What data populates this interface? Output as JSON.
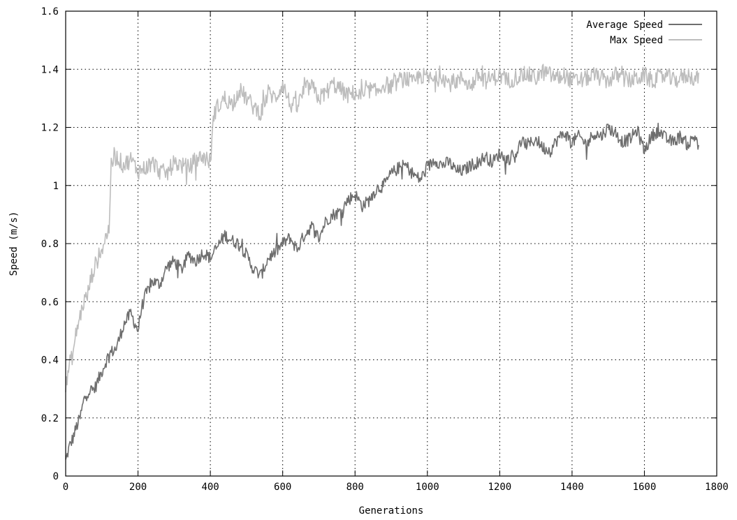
{
  "chart_data": {
    "type": "line",
    "title": "",
    "xlabel": "Generations",
    "ylabel": "Speed (m/s)",
    "xlim": [
      0,
      1800
    ],
    "ylim": [
      0,
      1.6
    ],
    "xticks": [
      0,
      200,
      400,
      600,
      800,
      1000,
      1200,
      1400,
      1600,
      1800
    ],
    "xtick_labels": [
      "0",
      "200",
      "400",
      "600",
      "800",
      "1000",
      "1200",
      "1400",
      "1600",
      "1800"
    ],
    "yticks": [
      0,
      0.2,
      0.4,
      0.6,
      0.8,
      1.0,
      1.2,
      1.4,
      1.6
    ],
    "ytick_labels": [
      "0",
      "0.2",
      "0.4",
      "0.6",
      "0.8",
      "1",
      "1.2",
      "1.4",
      "1.6"
    ],
    "grid": true,
    "legend_position": "top-right",
    "series": [
      {
        "name": "Average Speed",
        "color": "#6e6e6e",
        "noise": 0.022,
        "x": [
          0,
          10,
          20,
          30,
          40,
          50,
          60,
          80,
          100,
          120,
          140,
          160,
          180,
          200,
          210,
          220,
          240,
          260,
          280,
          300,
          320,
          340,
          360,
          380,
          400,
          420,
          440,
          460,
          480,
          500,
          520,
          540,
          560,
          580,
          600,
          620,
          640,
          660,
          680,
          700,
          720,
          740,
          760,
          780,
          800,
          820,
          840,
          860,
          880,
          900,
          920,
          940,
          960,
          980,
          1000,
          1020,
          1040,
          1060,
          1080,
          1100,
          1120,
          1140,
          1160,
          1180,
          1200,
          1220,
          1240,
          1260,
          1280,
          1300,
          1320,
          1340,
          1360,
          1380,
          1400,
          1420,
          1440,
          1460,
          1480,
          1500,
          1520,
          1540,
          1560,
          1580,
          1600,
          1620,
          1640,
          1660,
          1680,
          1700,
          1720,
          1740,
          1750
        ],
        "values": [
          0.05,
          0.1,
          0.13,
          0.17,
          0.2,
          0.26,
          0.29,
          0.3,
          0.36,
          0.42,
          0.44,
          0.52,
          0.56,
          0.5,
          0.58,
          0.62,
          0.67,
          0.66,
          0.72,
          0.74,
          0.71,
          0.76,
          0.74,
          0.77,
          0.75,
          0.79,
          0.83,
          0.81,
          0.8,
          0.76,
          0.71,
          0.69,
          0.75,
          0.77,
          0.8,
          0.82,
          0.78,
          0.83,
          0.86,
          0.82,
          0.88,
          0.9,
          0.91,
          0.95,
          0.97,
          0.93,
          0.95,
          0.99,
          1.0,
          1.04,
          1.06,
          1.07,
          1.04,
          1.02,
          1.06,
          1.09,
          1.07,
          1.08,
          1.05,
          1.05,
          1.07,
          1.08,
          1.1,
          1.08,
          1.11,
          1.09,
          1.1,
          1.15,
          1.14,
          1.16,
          1.13,
          1.12,
          1.16,
          1.18,
          1.15,
          1.17,
          1.14,
          1.18,
          1.17,
          1.2,
          1.18,
          1.15,
          1.16,
          1.19,
          1.12,
          1.17,
          1.19,
          1.16,
          1.15,
          1.17,
          1.14,
          1.17,
          1.14
        ]
      },
      {
        "name": "Max Speed",
        "color": "#bdbdbd",
        "noise": 0.03,
        "x": [
          0,
          10,
          20,
          30,
          40,
          50,
          60,
          70,
          80,
          90,
          100,
          110,
          120,
          125,
          130,
          140,
          160,
          180,
          200,
          220,
          240,
          260,
          280,
          300,
          320,
          340,
          360,
          380,
          400,
          410,
          420,
          440,
          460,
          480,
          500,
          520,
          540,
          560,
          580,
          600,
          620,
          640,
          660,
          680,
          700,
          720,
          740,
          760,
          780,
          800,
          820,
          840,
          860,
          880,
          900,
          920,
          940,
          960,
          980,
          1000,
          1020,
          1040,
          1060,
          1080,
          1100,
          1120,
          1140,
          1160,
          1180,
          1200,
          1220,
          1240,
          1260,
          1280,
          1300,
          1320,
          1340,
          1360,
          1380,
          1400,
          1420,
          1440,
          1460,
          1480,
          1500,
          1520,
          1540,
          1560,
          1580,
          1600,
          1620,
          1640,
          1660,
          1680,
          1700,
          1720,
          1740,
          1750
        ],
        "values": [
          0.3,
          0.38,
          0.42,
          0.5,
          0.55,
          0.6,
          0.62,
          0.68,
          0.72,
          0.75,
          0.78,
          0.82,
          0.85,
          1.06,
          1.08,
          1.1,
          1.07,
          1.09,
          1.05,
          1.06,
          1.08,
          1.05,
          1.04,
          1.08,
          1.07,
          1.06,
          1.09,
          1.1,
          1.08,
          1.25,
          1.27,
          1.3,
          1.28,
          1.33,
          1.3,
          1.27,
          1.25,
          1.32,
          1.3,
          1.35,
          1.28,
          1.27,
          1.33,
          1.34,
          1.3,
          1.32,
          1.35,
          1.33,
          1.31,
          1.32,
          1.3,
          1.33,
          1.32,
          1.35,
          1.34,
          1.36,
          1.37,
          1.35,
          1.38,
          1.37,
          1.36,
          1.38,
          1.35,
          1.36,
          1.37,
          1.34,
          1.38,
          1.36,
          1.37,
          1.38,
          1.36,
          1.37,
          1.38,
          1.38,
          1.37,
          1.39,
          1.38,
          1.37,
          1.38,
          1.36,
          1.36,
          1.37,
          1.38,
          1.37,
          1.36,
          1.38,
          1.37,
          1.36,
          1.37,
          1.38,
          1.36,
          1.37,
          1.38,
          1.36,
          1.37,
          1.38,
          1.37,
          1.37
        ]
      }
    ]
  }
}
